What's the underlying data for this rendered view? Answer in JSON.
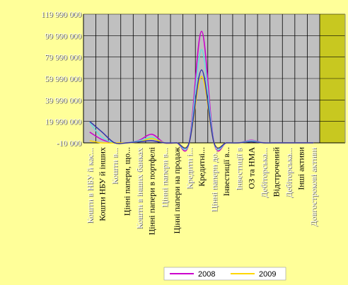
{
  "chart_data": {
    "type": "line",
    "title": "",
    "xlabel": "",
    "ylabel": "",
    "ylim": [
      -10000,
      119990000
    ],
    "y_ticks": [
      "-10 000",
      "19 990 000",
      "39 990 000",
      "59 990 000",
      "79 990 000",
      "99 990 000",
      "119 990 000"
    ],
    "y_tick_values": [
      -10000,
      19990000,
      39990000,
      59990000,
      79990000,
      99990000,
      119990000
    ],
    "categories": [
      "Кошти в НБУ й кас...",
      "Кошти НБУ й інших",
      "Кошти в...",
      "Цінні папери, що...",
      "Кошти в інших банках",
      "Цінні папери в портфелі",
      "Цінні папери в...",
      "Цінні папери на продаж",
      "Кредити і...",
      "Кредитні...",
      "Цінні папери до...",
      "Інвестиції в...",
      "Інвестиції в",
      "ОЗ та НМА",
      "Дебіторська...",
      "Відстрочений",
      "Дебіторська...",
      "Інші активи",
      "Довгострокові активи"
    ],
    "series": [
      {
        "name": "2008",
        "color": "#cc00cc",
        "values": [
          10000000,
          3000000,
          0,
          0,
          2500000,
          8000000,
          0,
          0,
          0,
          104000000,
          0,
          0,
          0,
          2500000,
          0,
          0,
          0,
          0,
          0
        ]
      },
      {
        "name": "",
        "color": "#66dddd",
        "values": [
          19000000,
          5000000,
          0,
          0,
          2000000,
          5000000,
          0,
          0,
          0,
          87000000,
          0,
          0,
          0,
          2000000,
          0,
          0,
          0,
          0,
          0
        ]
      },
      {
        "name": "2009",
        "color": "#ffd700",
        "values": [
          2000000,
          0,
          0,
          0,
          1000000,
          4000000,
          0,
          0,
          0,
          62000000,
          0,
          0,
          0,
          1000000,
          0,
          0,
          0,
          0,
          0
        ]
      },
      {
        "name": "",
        "color": "#3333aa",
        "values": [
          20000000,
          10000000,
          0,
          0,
          1000000,
          2000000,
          0,
          0,
          0,
          68000000,
          0,
          0,
          0,
          1000000,
          0,
          0,
          0,
          0,
          0
        ]
      }
    ],
    "grid": true,
    "legend": "bottom",
    "colors": {
      "page": "#ffff99",
      "plot": "#c0c0c0",
      "highlight": "#c8c820"
    }
  }
}
